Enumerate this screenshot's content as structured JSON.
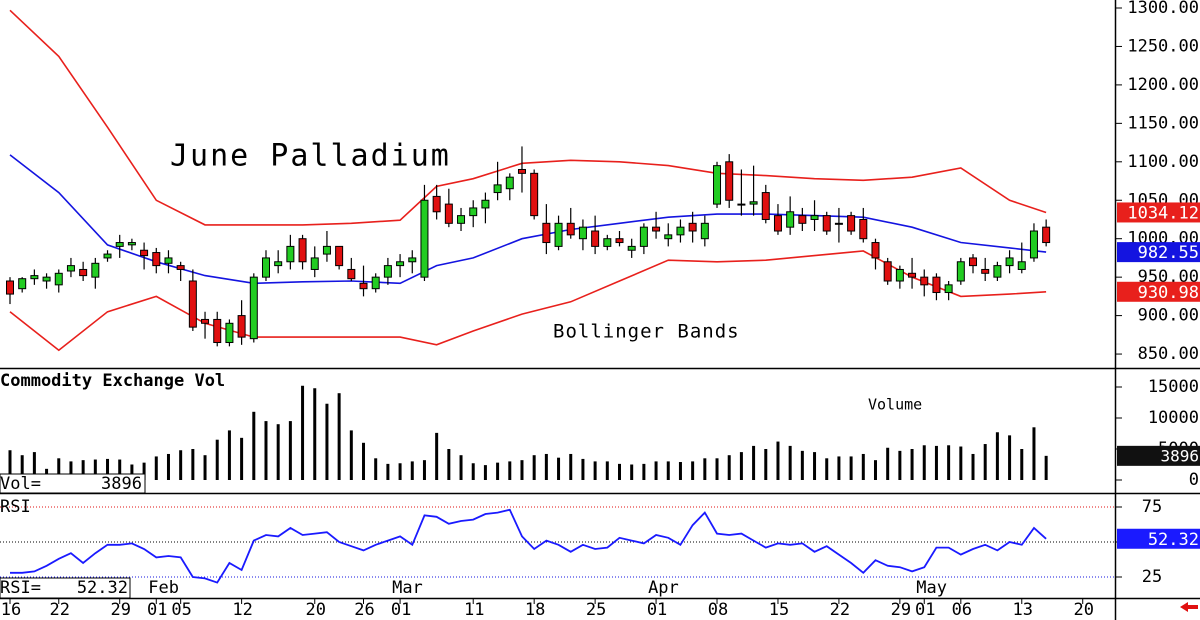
{
  "chart_data": [
    {
      "type": "candlestick",
      "title": "June Palladium",
      "annotation": "Bollinger Bands",
      "categories": [
        "16",
        null,
        null,
        null,
        "22",
        null,
        null,
        null,
        null,
        "29",
        null,
        null,
        "01",
        null,
        "05",
        null,
        null,
        null,
        null,
        "12",
        null,
        null,
        null,
        null,
        null,
        "20",
        null,
        null,
        null,
        "26",
        null,
        null,
        "01",
        null,
        null,
        null,
        null,
        null,
        "11",
        null,
        null,
        null,
        null,
        "18",
        null,
        null,
        null,
        null,
        "25",
        null,
        null,
        null,
        null,
        "01",
        null,
        null,
        null,
        null,
        "08",
        null,
        null,
        null,
        null,
        "15",
        null,
        null,
        null,
        null,
        "22",
        null,
        null,
        null,
        null,
        "29",
        null,
        "01",
        null,
        null,
        "06",
        null,
        null,
        null,
        null,
        "13",
        null,
        null,
        null,
        null,
        "20"
      ],
      "month_ticks": [
        {
          "value": 12,
          "label": "Feb"
        },
        {
          "value": 32,
          "label": "Mar"
        },
        {
          "value": 53,
          "label": "Apr"
        },
        {
          "value": 75,
          "label": "May"
        }
      ],
      "open": [
        945,
        935,
        948,
        945,
        940,
        958,
        960,
        950,
        975,
        990,
        992,
        985,
        982,
        968,
        965,
        945,
        895,
        895,
        865,
        900,
        870,
        950,
        965,
        970,
        1000,
        960,
        980,
        990,
        960,
        942,
        935,
        950,
        965,
        970,
        950,
        1055,
        1045,
        1020,
        1030,
        1040,
        1060,
        1065,
        1090,
        1085,
        1020,
        990,
        1020,
        1000,
        1010,
        990,
        1000,
        985,
        990,
        1015,
        1000,
        1005,
        1020,
        1000,
        1045,
        1100,
        1045,
        1045,
        1060,
        1030,
        1015,
        1030,
        1025,
        1030,
        1020,
        1030,
        1025,
        995,
        970,
        945,
        955,
        950,
        950,
        930,
        945,
        975,
        960,
        950,
        965,
        960,
        975,
        1015,
        null,
        null,
        null
      ],
      "high": [
        950,
        950,
        960,
        955,
        960,
        975,
        970,
        975,
        985,
        1005,
        1000,
        995,
        988,
        985,
        970,
        960,
        905,
        905,
        895,
        920,
        955,
        985,
        985,
        1005,
        1005,
        990,
        1010,
        990,
        975,
        965,
        955,
        975,
        980,
        985,
        1070,
        1070,
        1065,
        1040,
        1050,
        1060,
        1100,
        1085,
        1120,
        1090,
        1045,
        1030,
        1040,
        1025,
        1030,
        1005,
        1010,
        1000,
        1020,
        1035,
        1020,
        1025,
        1035,
        1030,
        1100,
        1110,
        1090,
        1095,
        1070,
        1045,
        1055,
        1040,
        1050,
        1035,
        1040,
        1035,
        1040,
        1000,
        975,
        965,
        975,
        960,
        955,
        945,
        975,
        980,
        975,
        970,
        985,
        995,
        1020,
        1025,
        null,
        null,
        null
      ],
      "low": [
        915,
        930,
        940,
        935,
        930,
        950,
        945,
        935,
        970,
        975,
        985,
        960,
        955,
        955,
        945,
        880,
        870,
        860,
        860,
        862,
        865,
        945,
        955,
        960,
        960,
        950,
        970,
        960,
        945,
        925,
        930,
        940,
        950,
        955,
        945,
        1025,
        1015,
        1010,
        1015,
        1020,
        1050,
        1050,
        1060,
        1025,
        980,
        985,
        1000,
        985,
        980,
        985,
        990,
        975,
        980,
        1000,
        990,
        995,
        995,
        990,
        1040,
        1040,
        1030,
        1030,
        1020,
        1005,
        1005,
        1010,
        1010,
        1005,
        995,
        1005,
        995,
        960,
        940,
        935,
        935,
        925,
        920,
        920,
        940,
        955,
        945,
        945,
        955,
        955,
        970,
        990,
        null,
        null,
        null
      ],
      "close": [
        928,
        948,
        952,
        950,
        955,
        965,
        952,
        968,
        980,
        995,
        995,
        978,
        965,
        975,
        960,
        885,
        890,
        865,
        890,
        872,
        950,
        975,
        970,
        990,
        970,
        975,
        990,
        965,
        948,
        935,
        950,
        965,
        970,
        975,
        1050,
        1035,
        1020,
        1030,
        1040,
        1050,
        1070,
        1080,
        1085,
        1030,
        995,
        1020,
        1005,
        1015,
        990,
        1000,
        995,
        990,
        1015,
        1010,
        1005,
        1015,
        1010,
        1020,
        1095,
        1050,
        1045,
        1048,
        1025,
        1010,
        1035,
        1020,
        1030,
        1010,
        1020,
        1010,
        1000,
        975,
        945,
        960,
        950,
        940,
        930,
        940,
        970,
        965,
        955,
        965,
        975,
        970,
        1010,
        995,
        null,
        null,
        null
      ],
      "up_color": "#22cc22",
      "down_color": "#e01010",
      "bands": [
        {
          "color": "#e8201c",
          "x": [
            0,
            4,
            8,
            12,
            16,
            20,
            24,
            28,
            32,
            35,
            38,
            42,
            46,
            50,
            54,
            58,
            62,
            66,
            70,
            74,
            78,
            82,
            85
          ],
          "values": [
            1297,
            1237,
            1145,
            1050,
            1018,
            1018,
            1018,
            1020,
            1024,
            1068,
            1078,
            1098,
            1102,
            1100,
            1095,
            1085,
            1082,
            1078,
            1076,
            1080,
            1092,
            1050,
            1034.12
          ]
        },
        {
          "color": "#1414e0",
          "x": [
            0,
            4,
            8,
            12,
            16,
            20,
            24,
            28,
            32,
            35,
            38,
            42,
            46,
            50,
            54,
            58,
            62,
            66,
            70,
            74,
            78,
            82,
            85
          ],
          "values": [
            1109,
            1060,
            992,
            970,
            952,
            942,
            944,
            945,
            942,
            965,
            975,
            1000,
            1012,
            1020,
            1028,
            1032,
            1032,
            1030,
            1028,
            1015,
            995,
            988,
            982.55
          ]
        },
        {
          "color": "#e8201c",
          "x": [
            0,
            4,
            8,
            12,
            16,
            20,
            24,
            28,
            32,
            35,
            38,
            42,
            46,
            50,
            54,
            58,
            62,
            66,
            70,
            74,
            78,
            82,
            85
          ],
          "values": [
            905,
            855,
            905,
            925,
            890,
            872,
            872,
            872,
            872,
            862,
            880,
            902,
            918,
            945,
            972,
            970,
            972,
            978,
            984,
            950,
            925,
            928,
            930.98
          ]
        }
      ],
      "ylim": [
        840,
        1300
      ],
      "yticks": [
        {
          "value": 1300,
          "label": "1300.00"
        },
        {
          "value": 1250,
          "label": "1250.00"
        },
        {
          "value": 1200,
          "label": "1200.00"
        },
        {
          "value": 1150,
          "label": "1150.00"
        },
        {
          "value": 1100,
          "label": "1100.00"
        },
        {
          "value": 1050,
          "label": "1050.00"
        },
        {
          "value": 1000,
          "label": "1000.00"
        },
        {
          "value": 950,
          "label": "950.00"
        },
        {
          "value": 900,
          "label": "900.00"
        },
        {
          "value": 850,
          "label": "850.00"
        }
      ]
    },
    {
      "type": "bar",
      "title": "Commodity Exchange Vol",
      "annotation": "Volume",
      "value_caption": "Vol=",
      "color": "#000000",
      "values": [
        4800,
        4000,
        4500,
        1800,
        3500,
        3000,
        3200,
        3300,
        3400,
        3300,
        2500,
        2800,
        3800,
        4200,
        4800,
        5000,
        4000,
        6500,
        8000,
        6800,
        11000,
        9500,
        9000,
        9500,
        15200,
        14800,
        12300,
        14000,
        8000,
        6000,
        3500,
        2600,
        2700,
        3000,
        3200,
        7600,
        5000,
        4000,
        2700,
        2400,
        2800,
        3000,
        3200,
        4000,
        4200,
        3600,
        4200,
        3400,
        3000,
        3000,
        2600,
        2500,
        2600,
        3000,
        3000,
        2900,
        3000,
        3500,
        3500,
        4000,
        4500,
        5500,
        5000,
        6200,
        5500,
        4700,
        4500,
        3500,
        3800,
        3800,
        4200,
        3200,
        5200,
        4700,
        5000,
        5600,
        5500,
        5600,
        5400,
        4200,
        5800,
        7700,
        7200,
        5000,
        8500,
        3896,
        null,
        null,
        null
      ],
      "ylim": [
        0,
        17000
      ],
      "yticks": [
        15000,
        10000,
        5000,
        0
      ]
    },
    {
      "type": "line",
      "title": "RSI",
      "value_caption": "RSI=",
      "color": "#1a1aff",
      "values": [
        28,
        28,
        29,
        33,
        38,
        42,
        35,
        42,
        48,
        48,
        49,
        45,
        39,
        40,
        39,
        25,
        24,
        21,
        35,
        30,
        51,
        55,
        54,
        60,
        55,
        56,
        57,
        50,
        47,
        44,
        48,
        51,
        54,
        48,
        69,
        68,
        63,
        65,
        66,
        70,
        71,
        73,
        54,
        45,
        51,
        48,
        43,
        48,
        45,
        46,
        53,
        51,
        49,
        55,
        53,
        48,
        62,
        71,
        56,
        55,
        56,
        51,
        46,
        49,
        48,
        49,
        43,
        47,
        41,
        35,
        28,
        37,
        33,
        32,
        29,
        32,
        46,
        46,
        41,
        45,
        48,
        44,
        50,
        48,
        60,
        52.32,
        null,
        null,
        null
      ],
      "ylim": [
        15,
        85
      ],
      "yticks": [
        75,
        50,
        25
      ]
    }
  ]
}
